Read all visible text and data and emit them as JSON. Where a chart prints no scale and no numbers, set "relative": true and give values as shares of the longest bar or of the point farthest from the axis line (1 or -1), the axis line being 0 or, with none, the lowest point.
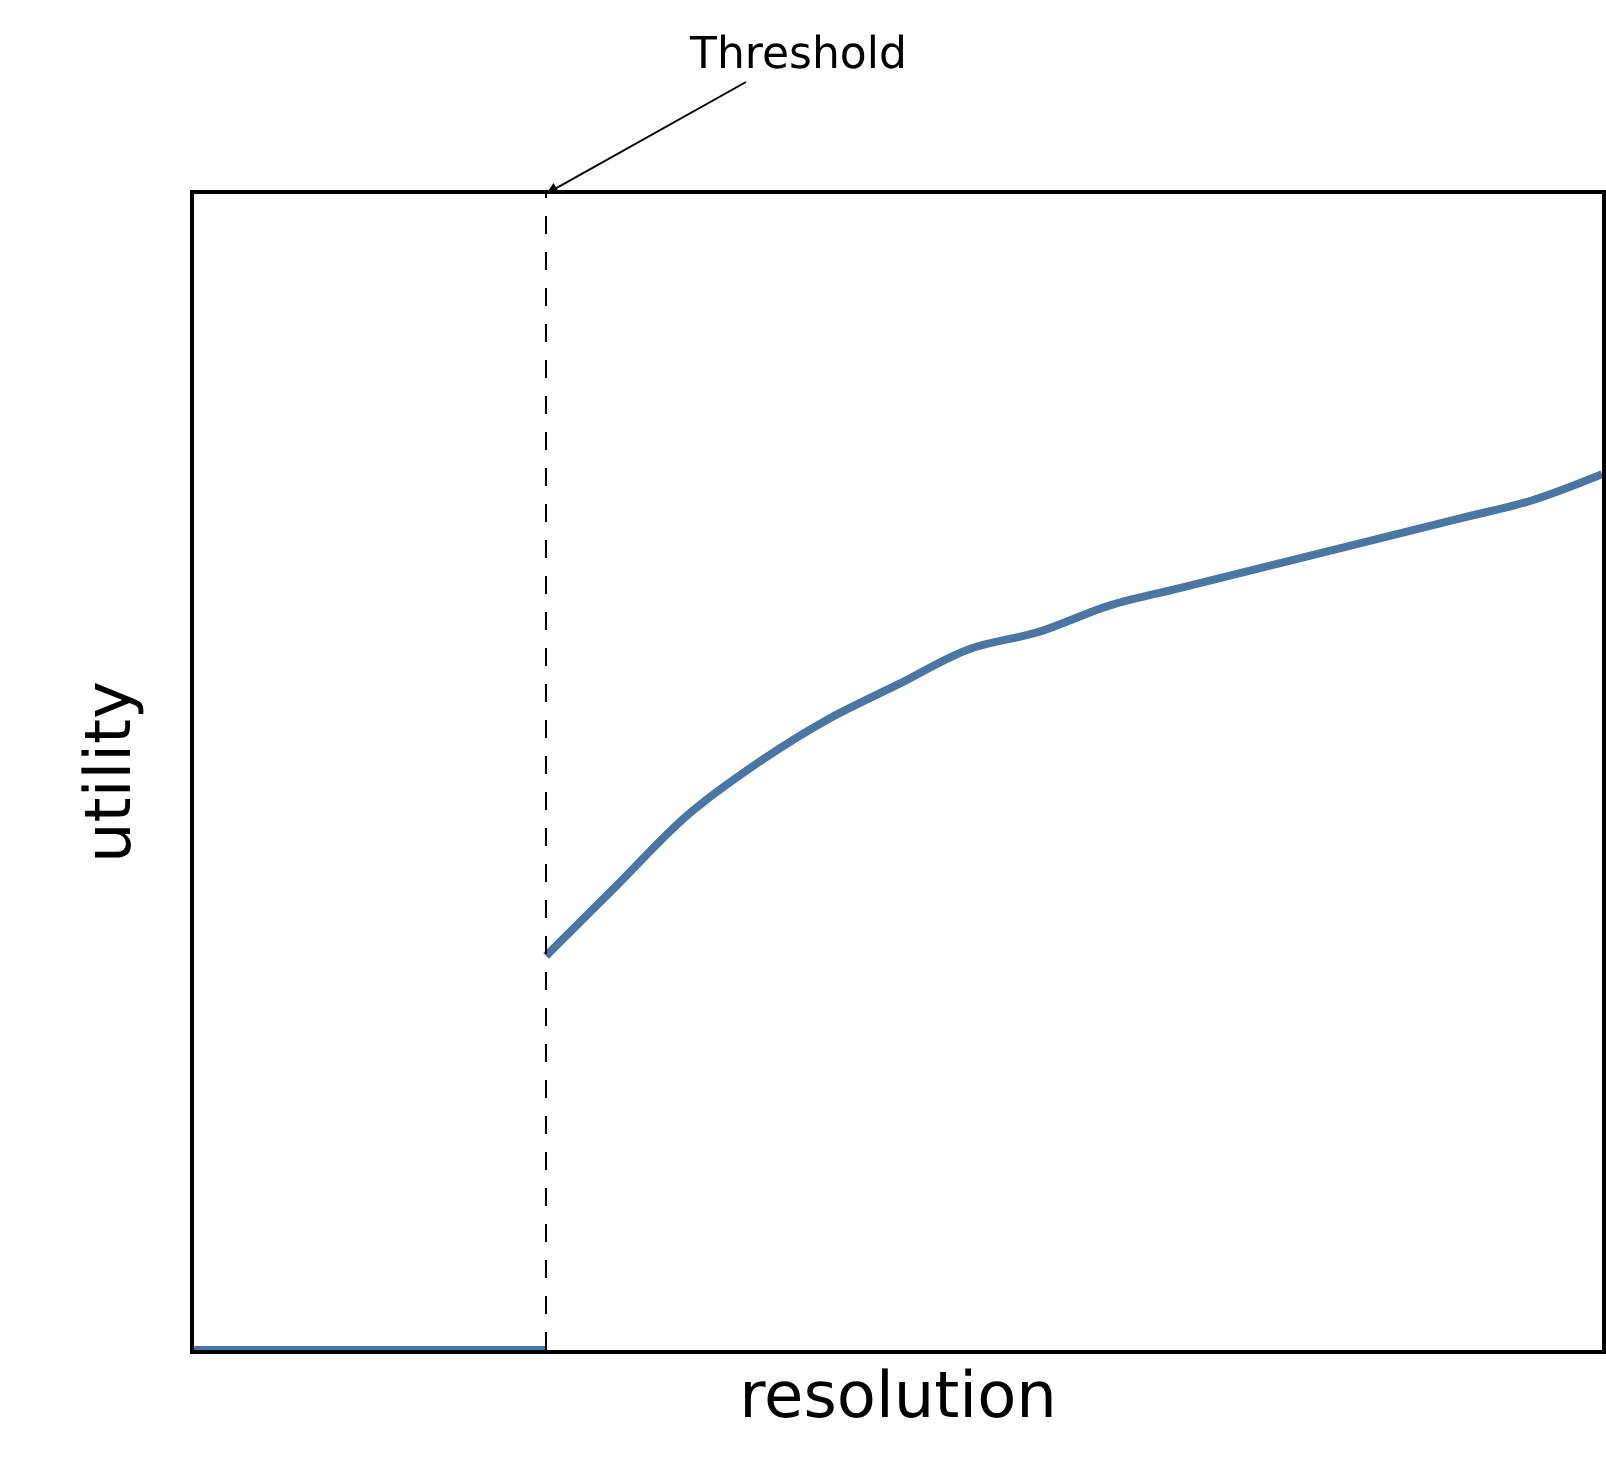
{
  "chart_data": {
    "type": "line",
    "relative": true,
    "xlabel": "resolution",
    "ylabel": "utility",
    "categories": [
      null,
      null,
      null,
      null,
      null,
      null,
      null,
      null,
      null,
      null,
      null,
      null,
      null,
      null,
      null,
      null,
      null,
      null,
      null,
      null,
      null
    ],
    "series": [
      {
        "color": "#4a76a4",
        "values": [
          0,
          0,
          0,
          0,
          0,
          0,
          null,
          null,
          null,
          null,
          null,
          null,
          null,
          null,
          null,
          null,
          null,
          null,
          null,
          null,
          null
        ]
      },
      {
        "color": "#4a76a4",
        "values": [
          null,
          null,
          null,
          null,
          null,
          0.45,
          0.53,
          0.61,
          0.67,
          0.72,
          0.76,
          0.8,
          0.82,
          0.85,
          0.87,
          0.89,
          0.91,
          0.93,
          0.95,
          0.97,
          1.0
        ]
      }
    ],
    "annotations": [
      "Threshold"
    ]
  }
}
